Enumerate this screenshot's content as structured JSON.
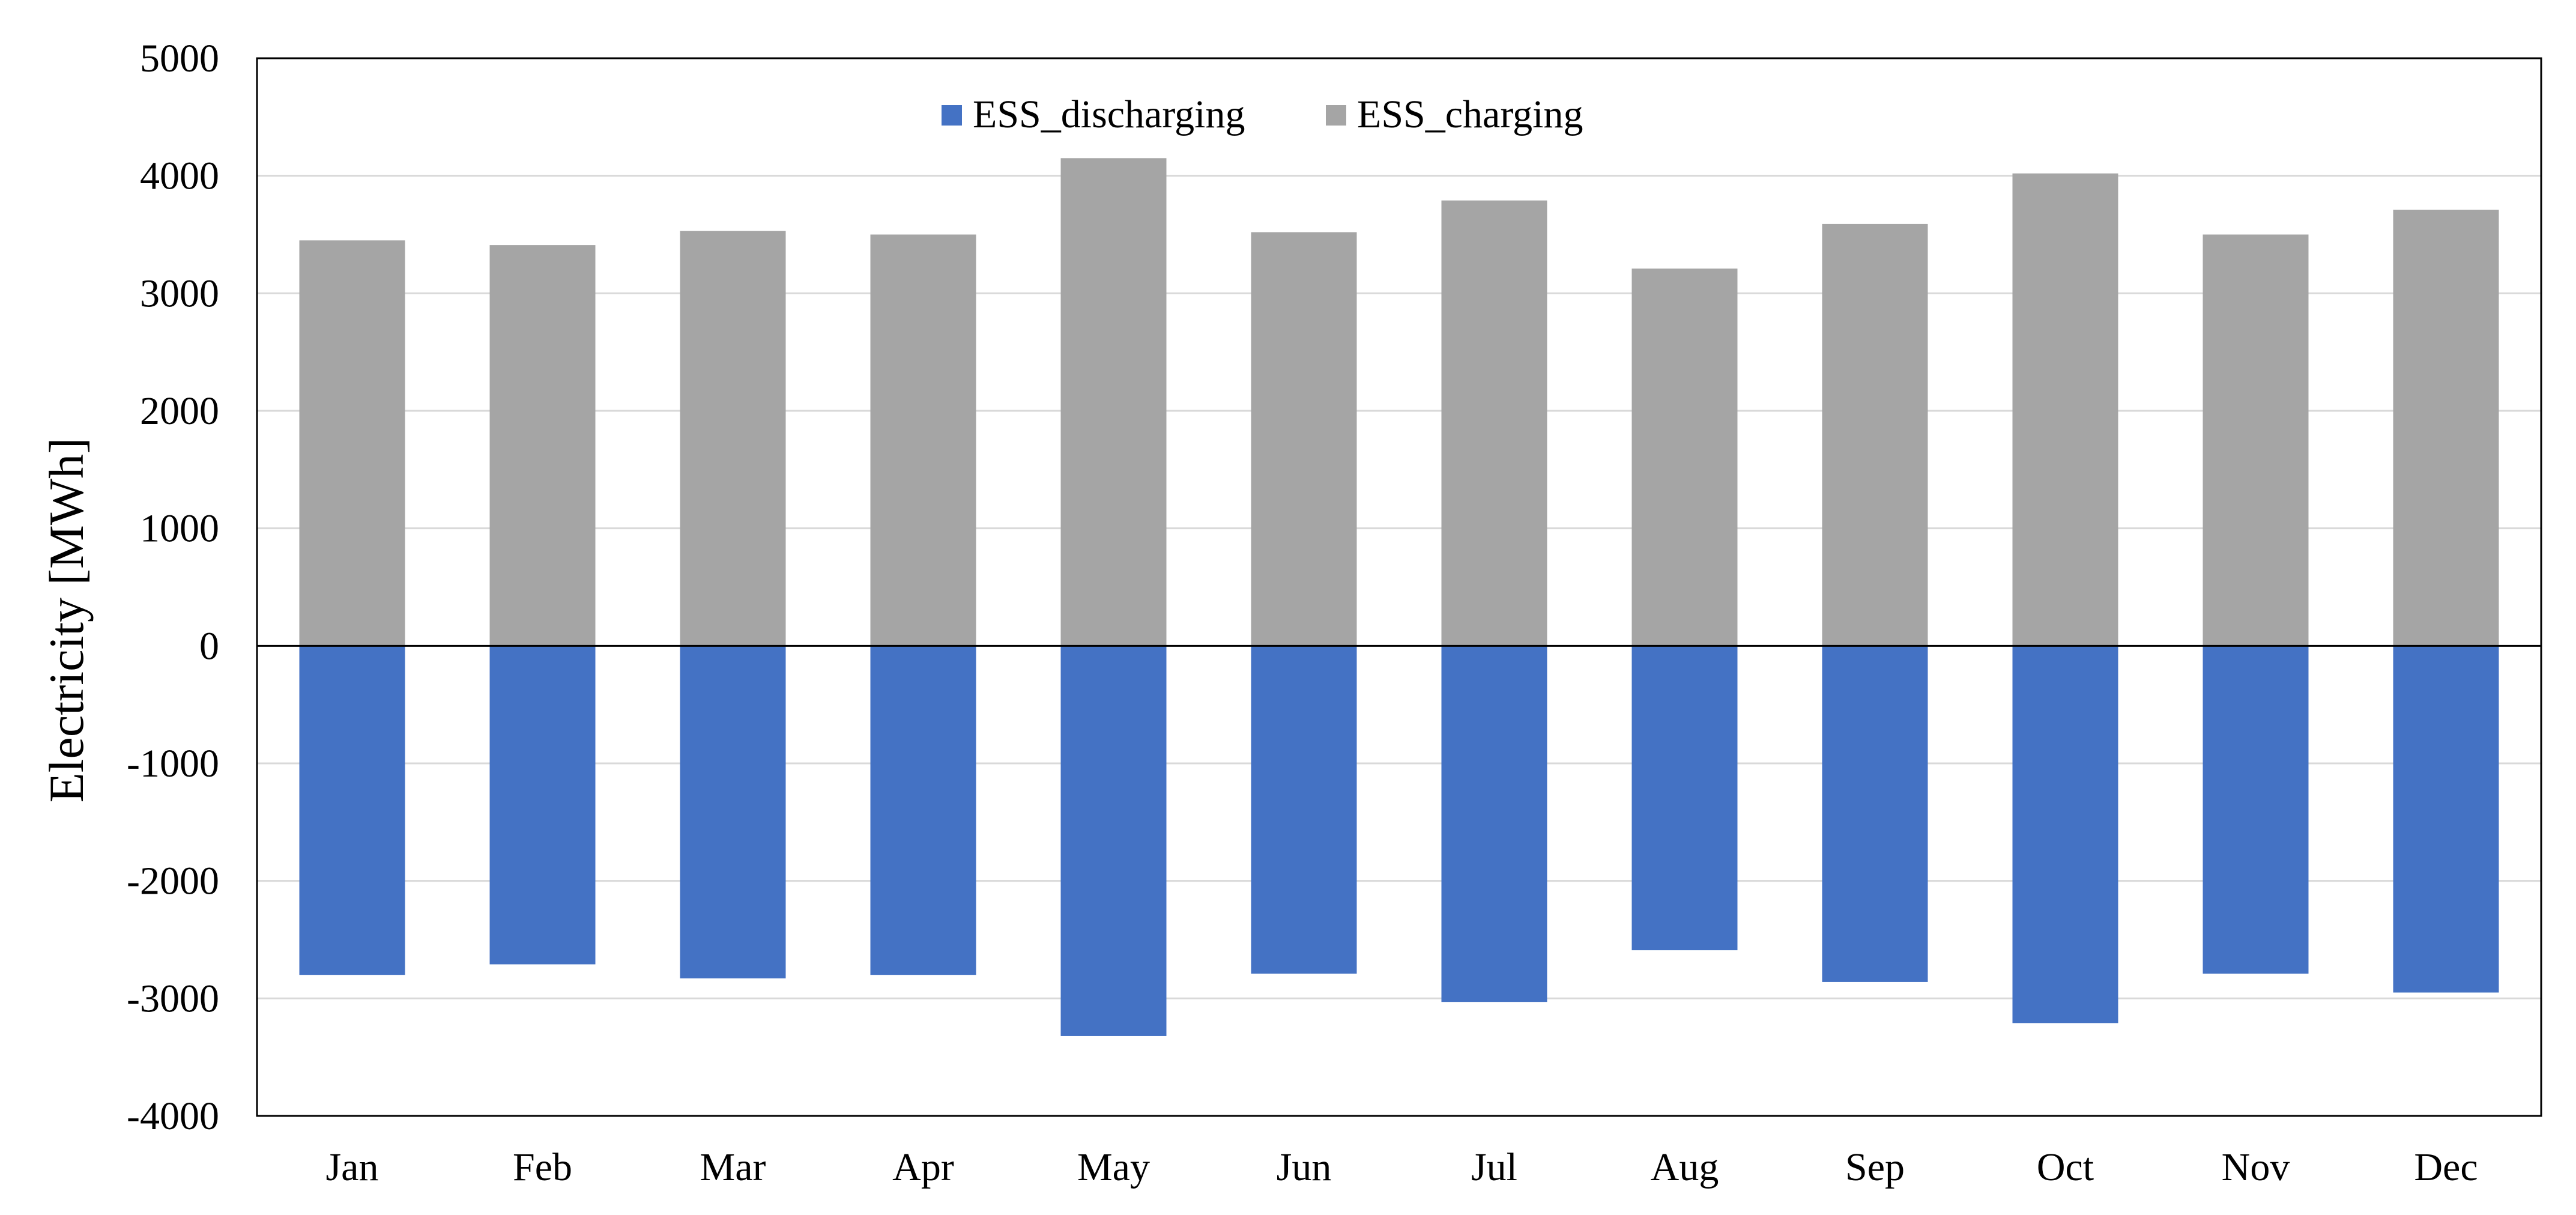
{
  "chart_data": {
    "type": "bar",
    "stacked": true,
    "categories": [
      "Jan",
      "Feb",
      "Mar",
      "Apr",
      "May",
      "Jun",
      "Jul",
      "Aug",
      "Sep",
      "Oct",
      "Nov",
      "Dec"
    ],
    "series": [
      {
        "name": "ESS_discharging",
        "color": "#4472C4",
        "values": [
          -2800,
          -2710,
          -2830,
          -2800,
          -3320,
          -2790,
          -3030,
          -2590,
          -2860,
          -3210,
          -2790,
          -2950
        ]
      },
      {
        "name": "ESS_charging",
        "color": "#A5A5A5",
        "values": [
          3450,
          3410,
          3530,
          3500,
          4150,
          3520,
          3790,
          3210,
          3590,
          4020,
          3500,
          3710
        ]
      }
    ],
    "ylabel": "Electricity [MWh]",
    "xlabel": "",
    "ylim": [
      -4000,
      5000
    ],
    "yticks": [
      -4000,
      -3000,
      -2000,
      -1000,
      0,
      1000,
      2000,
      3000,
      4000,
      5000
    ],
    "grid": true,
    "legend_position": "top-center",
    "gridline_color": "#D9D9D9",
    "zero_line_color": "#000000"
  }
}
